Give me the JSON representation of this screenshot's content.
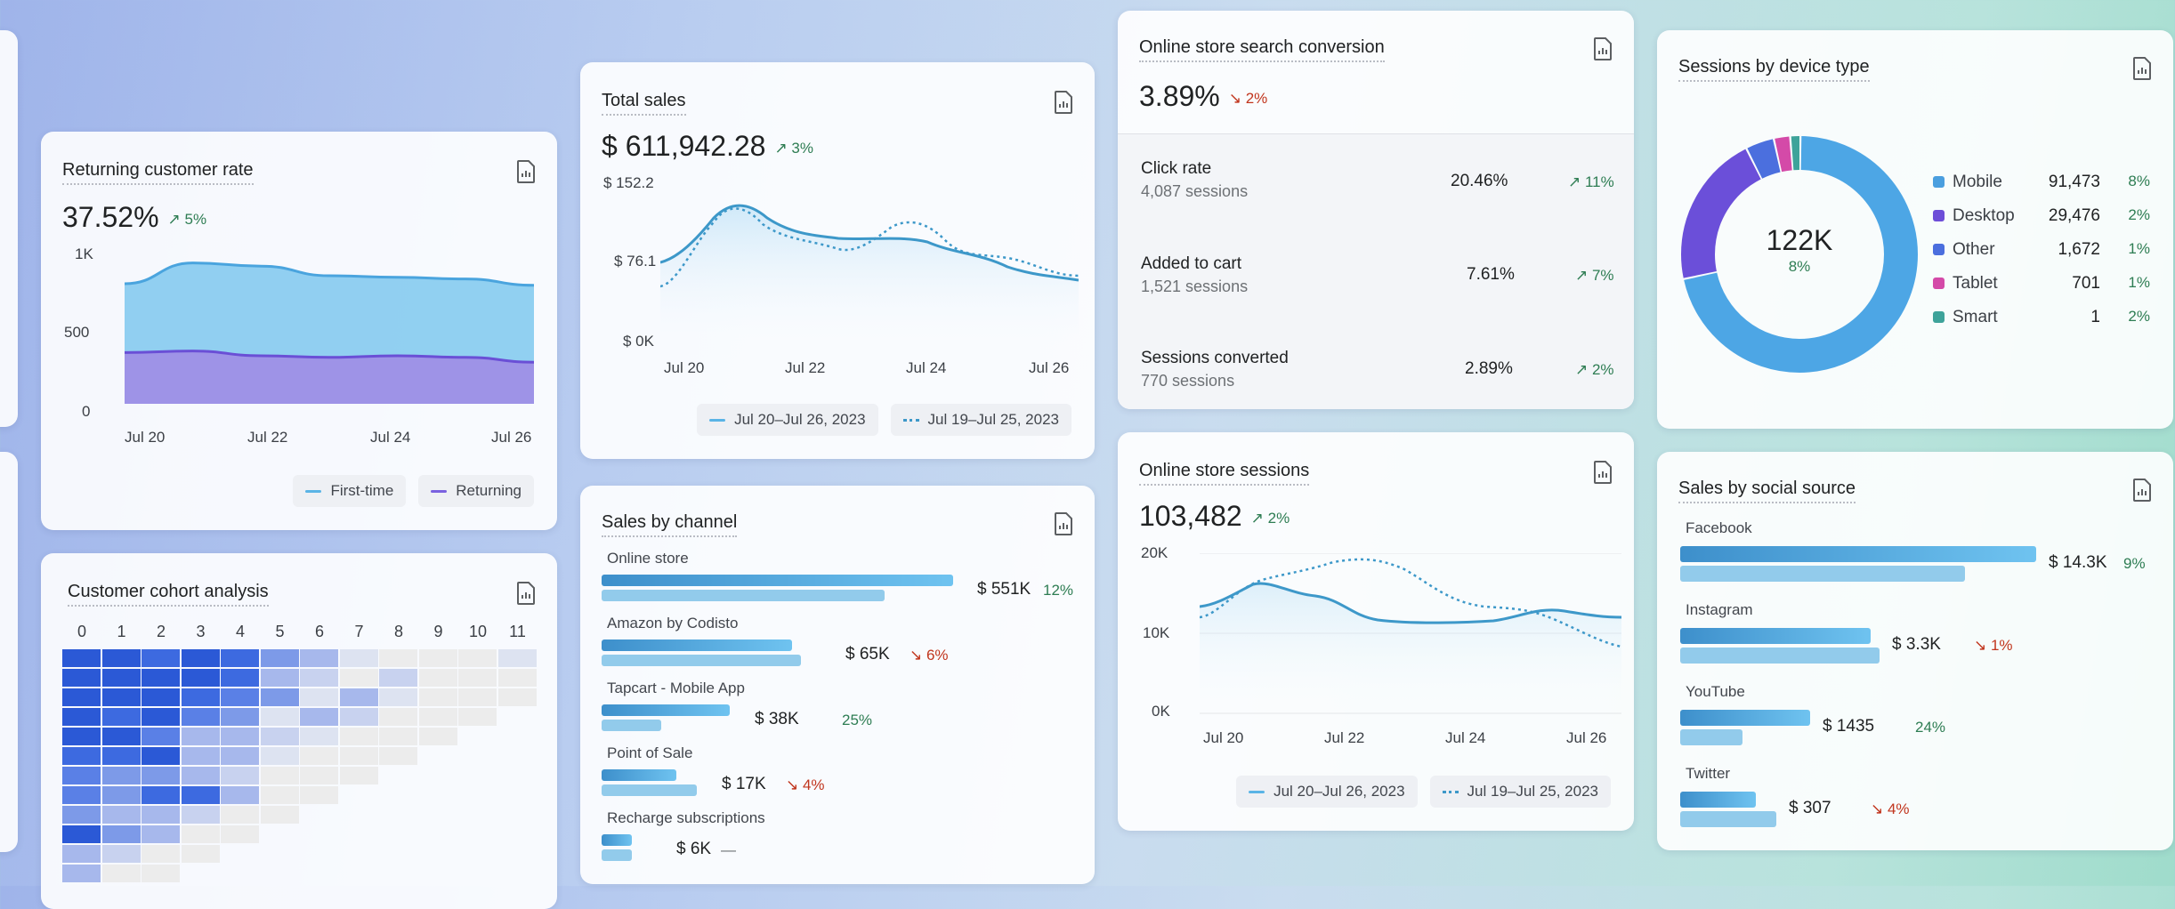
{
  "returning_customer_rate": {
    "title": "Returning customer rate",
    "value": "37.52%",
    "delta": "↗ 5%",
    "y_ticks": [
      "1K",
      "500",
      "0"
    ],
    "x_ticks": [
      "Jul 20",
      "Jul 22",
      "Jul 24",
      "Jul 26"
    ],
    "legend": [
      "First-time",
      "Returning"
    ],
    "chart_data": {
      "type": "area",
      "x": [
        "Jul 20",
        "Jul 21",
        "Jul 22",
        "Jul 23",
        "Jul 24",
        "Jul 25",
        "Jul 26"
      ],
      "series": [
        {
          "name": "First-time",
          "values": [
            750,
            880,
            860,
            800,
            790,
            780,
            740
          ]
        },
        {
          "name": "Returning",
          "values": [
            320,
            330,
            300,
            290,
            300,
            290,
            260
          ]
        }
      ],
      "ylim": [
        0,
        1000
      ]
    }
  },
  "total_sales": {
    "title": "Total sales",
    "value": "$ 611,942.28",
    "delta": "↗ 3%",
    "y_ticks": [
      "$ 152.2",
      "$ 76.1",
      "$ 0K"
    ],
    "x_ticks": [
      "Jul 20",
      "Jul 22",
      "Jul 24",
      "Jul 26"
    ],
    "legend": [
      "Jul 20–Jul 26, 2023",
      "Jul 19–Jul 25, 2023"
    ]
  },
  "search_conversion": {
    "title": "Online store search conversion",
    "value": "3.89%",
    "delta": "↘ 2%",
    "rows": [
      {
        "name": "Click rate",
        "sub": "4,087 sessions",
        "pct": "20.46%",
        "delta": "↗ 11%"
      },
      {
        "name": "Added to cart",
        "sub": "1,521 sessions",
        "pct": "7.61%",
        "delta": "↗ 7%"
      },
      {
        "name": "Sessions converted",
        "sub": "770 sessions",
        "pct": "2.89%",
        "delta": "↗ 2%"
      }
    ]
  },
  "device_type": {
    "title": "Sessions by device type",
    "center_value": "122K",
    "center_delta": "8%",
    "items": [
      {
        "name": "Mobile",
        "value": "91,473",
        "pct": "8%",
        "color": "#4a9fdf"
      },
      {
        "name": "Desktop",
        "value": "29,476",
        "pct": "2%",
        "color": "#6d4ed8"
      },
      {
        "name": "Other",
        "value": "1,672",
        "pct": "1%",
        "color": "#4b6fde"
      },
      {
        "name": "Tablet",
        "value": "701",
        "pct": "1%",
        "color": "#d44aa8"
      },
      {
        "name": "Smart",
        "value": "1",
        "pct": "2%",
        "color": "#3ea39a"
      }
    ]
  },
  "cohort": {
    "title": "Customer cohort analysis",
    "columns": [
      "0",
      "1",
      "2",
      "3",
      "4",
      "5",
      "6",
      "7",
      "8",
      "9",
      "10",
      "11"
    ]
  },
  "sales_by_channel": {
    "title": "Sales by channel",
    "items": [
      {
        "name": "Online store",
        "value": "$ 551K",
        "delta": "12%",
        "dir": "up"
      },
      {
        "name": "Amazon by Codisto",
        "value": "$ 65K",
        "delta": "↘ 6%",
        "dir": "down"
      },
      {
        "name": "Tapcart - Mobile App",
        "value": "$ 38K",
        "delta": "25%",
        "dir": "up"
      },
      {
        "name": "Point of Sale",
        "value": "$ 17K",
        "delta": "↘ 4%",
        "dir": "down"
      },
      {
        "name": "Recharge subscriptions",
        "value": "$ 6K",
        "delta": "—",
        "dir": "flat"
      }
    ]
  },
  "store_sessions": {
    "title": "Online store sessions",
    "value": "103,482",
    "delta": "↗ 2%",
    "y_ticks": [
      "20K",
      "10K",
      "0K"
    ],
    "x_ticks": [
      "Jul 20",
      "Jul 22",
      "Jul 24",
      "Jul 26"
    ],
    "legend": [
      "Jul 20–Jul 26, 2023",
      "Jul 19–Jul 25, 2023"
    ]
  },
  "social_source": {
    "title": "Sales by social source",
    "items": [
      {
        "name": "Facebook",
        "value": "$ 14.3K",
        "delta": "9%",
        "dir": "up"
      },
      {
        "name": "Instagram",
        "value": "$ 3.3K",
        "delta": "↘ 1%",
        "dir": "down"
      },
      {
        "name": "YouTube",
        "value": "$ 1435",
        "delta": "24%",
        "dir": "up"
      },
      {
        "name": "Twitter",
        "value": "$ 307",
        "delta": "↘ 4%",
        "dir": "down"
      }
    ]
  }
}
